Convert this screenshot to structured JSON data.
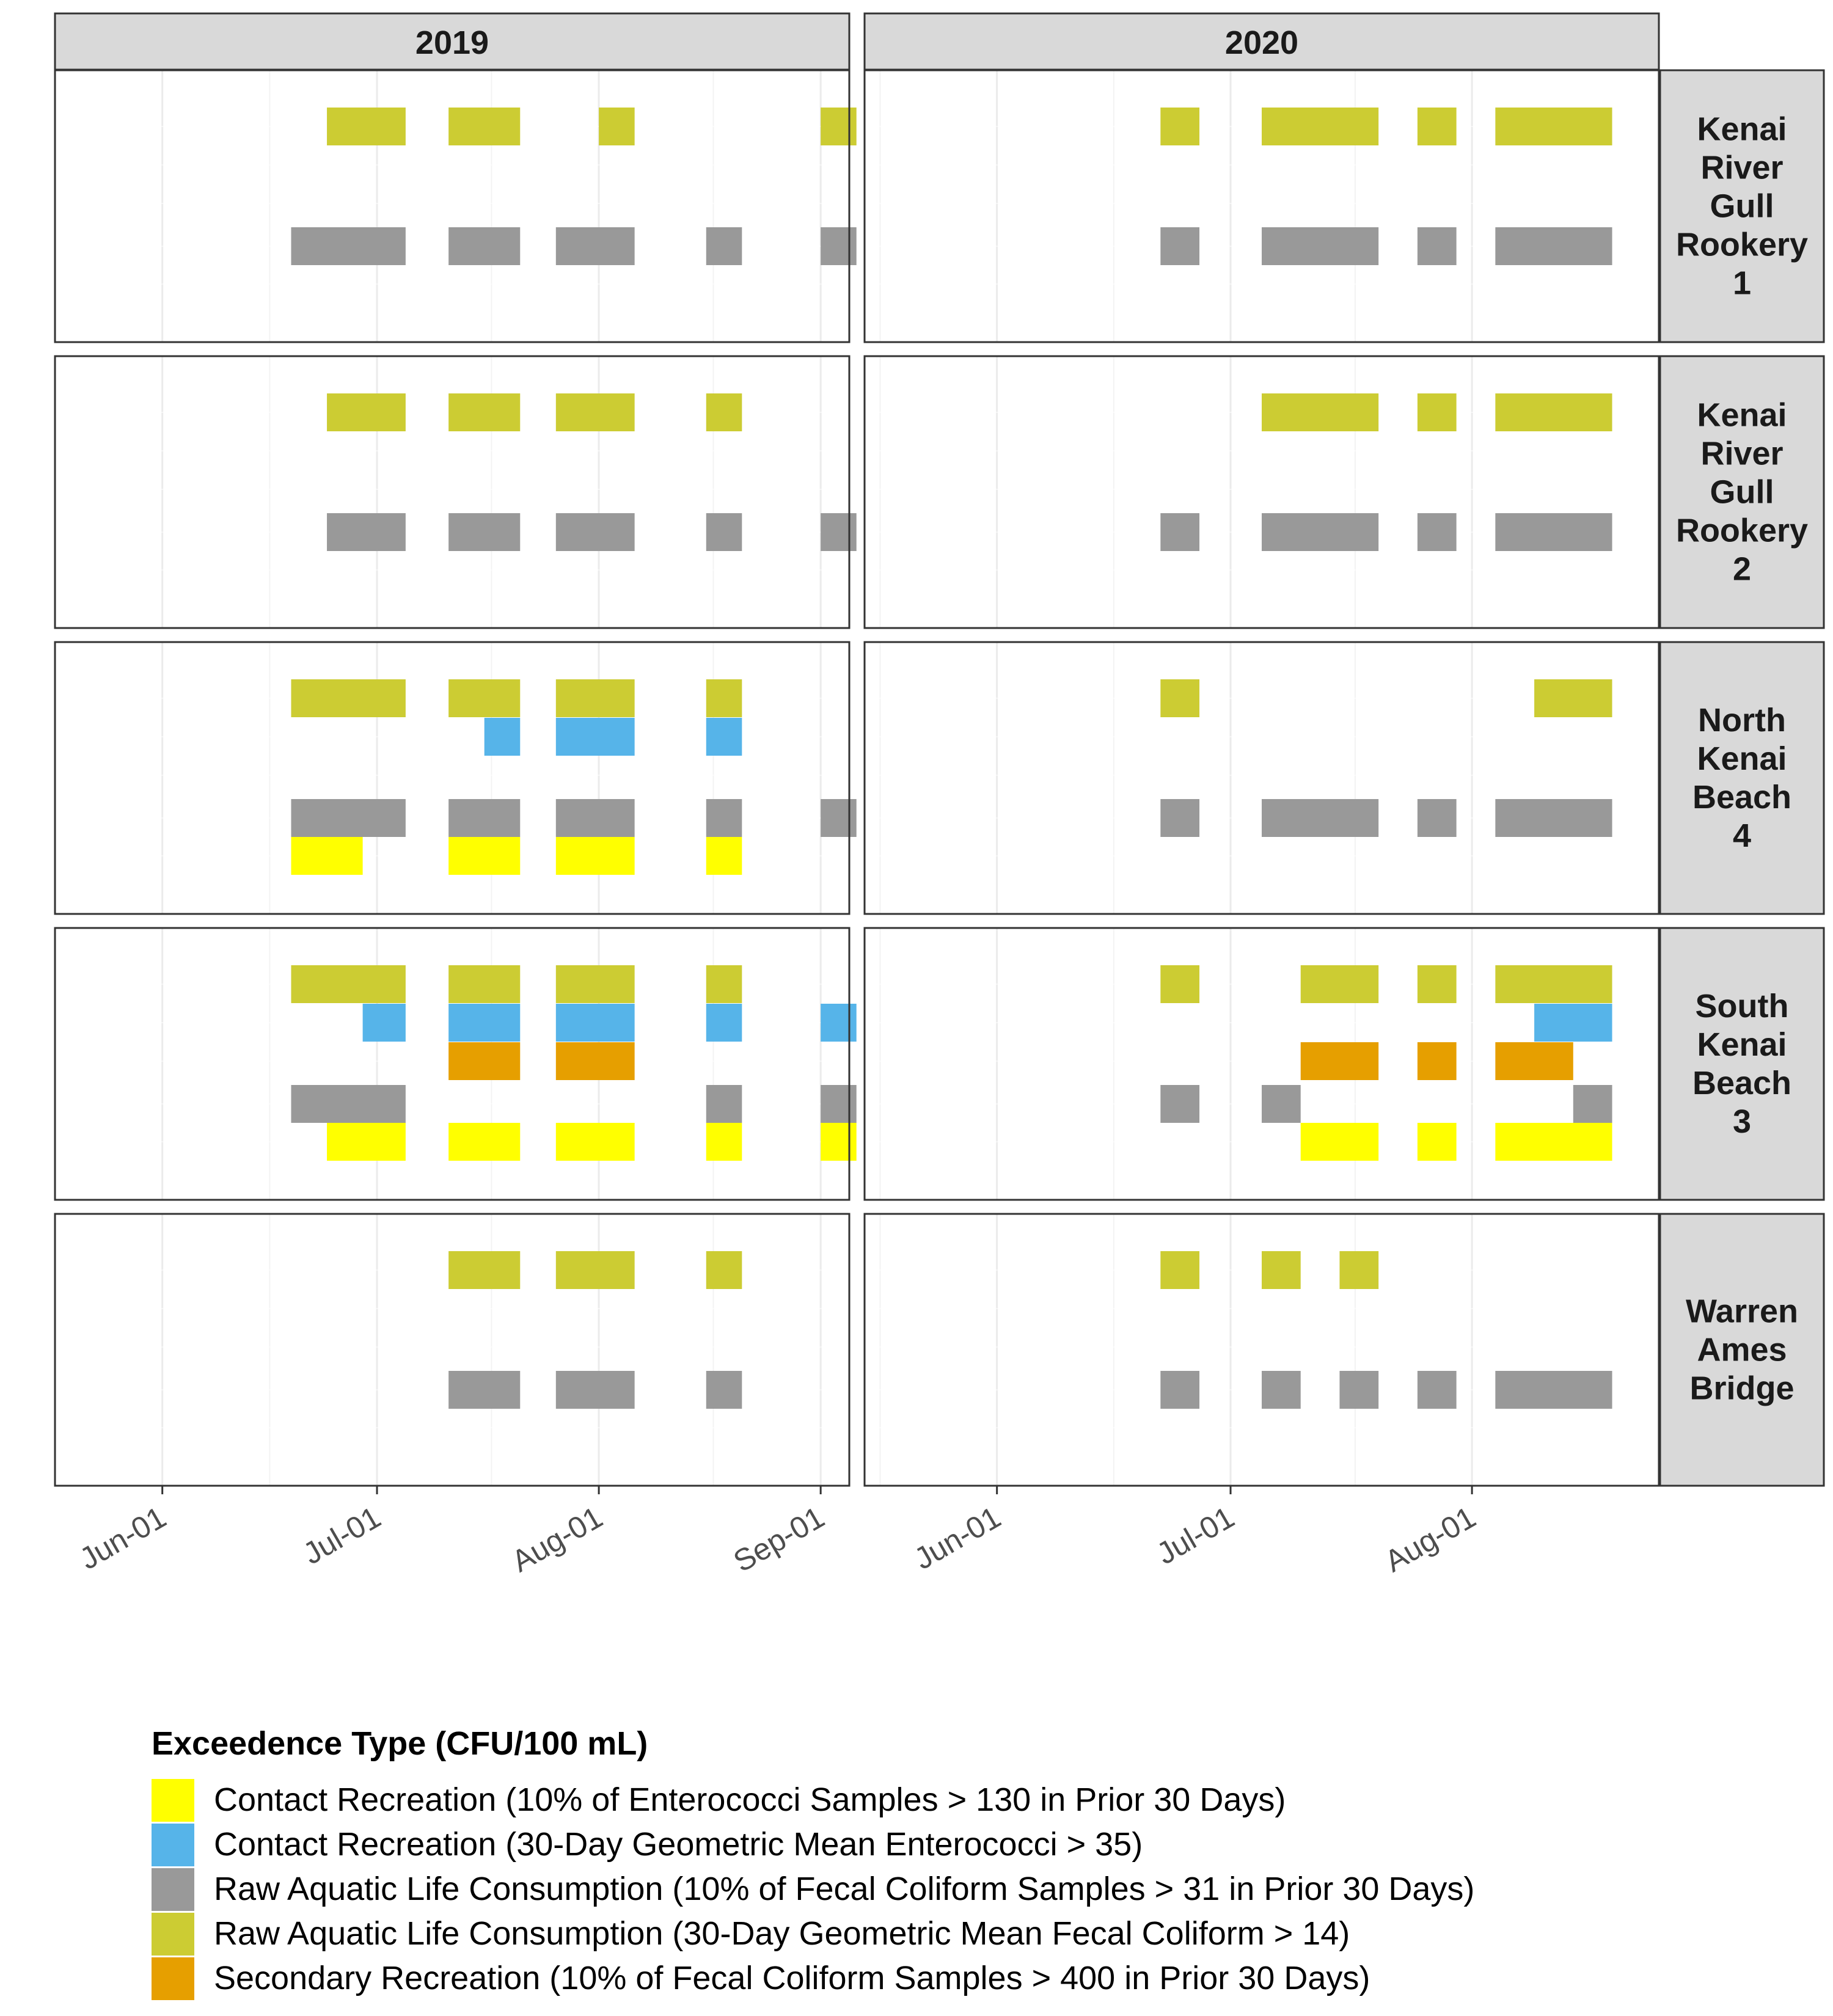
{
  "chart_data": {
    "type": "timeline",
    "years": [
      "2019",
      "2020"
    ],
    "sites": [
      [
        "Kenai",
        "River",
        "Gull",
        "Rookery",
        "1"
      ],
      [
        "Kenai",
        "River",
        "Gull",
        "Rookery",
        "2"
      ],
      [
        "North",
        "Kenai",
        "Beach",
        "4"
      ],
      [
        "South",
        "Kenai",
        "Beach",
        "3"
      ],
      [
        "Warren",
        "Ames",
        "Bridge"
      ]
    ],
    "x_ticks": [
      [
        "Jun-01",
        "Jul-01",
        "Aug-01",
        "Sep-01"
      ],
      [
        "Jun-01",
        "Jul-01",
        "Aug-01"
      ]
    ],
    "x_ranges": [
      [
        "2019-05-17",
        "2019-09-05"
      ],
      [
        "2020-05-15",
        "2020-08-25"
      ]
    ],
    "grid": true,
    "legend_position": "bottom",
    "legend": {
      "title": "Exceedence Type (CFU/100 mL)",
      "items": [
        {
          "label": "Contact Recreation (10% of Enterococci Samples > 130 in Prior 30 Days)",
          "color": "#FFFF00"
        },
        {
          "label": "Contact Recreation (30-Day Geometric Mean Enterococci > 35)",
          "color": "#56B4E9"
        },
        {
          "label": "Raw Aquatic Life Consumption (10% of Fecal Coliform Samples > 31 in Prior 30 Days)",
          "color": "#999999"
        },
        {
          "label": "Raw Aquatic Life Consumption (30-Day Geometric Mean Fecal Coliform > 14)",
          "color": "#CCCC33"
        },
        {
          "label": "Secondary Recreation (10% of Fecal Coliform Samples > 400 in Prior 30 Days)",
          "color": "#E69F00"
        }
      ]
    },
    "panels": [
      {
        "site": 0,
        "year": 0,
        "segments": [
          {
            "row": 3,
            "start": "2019-06-24",
            "end": "2019-07-05"
          },
          {
            "row": 3,
            "start": "2019-07-11",
            "end": "2019-07-21"
          },
          {
            "row": 3,
            "start": "2019-08-01",
            "end": "2019-08-06"
          },
          {
            "row": 3,
            "start": "2019-09-01",
            "end": "2019-09-06"
          },
          {
            "row": 2,
            "start": "2019-06-19",
            "end": "2019-07-05"
          },
          {
            "row": 2,
            "start": "2019-07-11",
            "end": "2019-07-21"
          },
          {
            "row": 2,
            "start": "2019-07-26",
            "end": "2019-08-06"
          },
          {
            "row": 2,
            "start": "2019-08-16",
            "end": "2019-08-21"
          },
          {
            "row": 2,
            "start": "2019-09-01",
            "end": "2019-09-06"
          }
        ]
      },
      {
        "site": 0,
        "year": 1,
        "segments": [
          {
            "row": 3,
            "start": "2020-06-22",
            "end": "2020-06-27"
          },
          {
            "row": 3,
            "start": "2020-07-05",
            "end": "2020-07-20"
          },
          {
            "row": 3,
            "start": "2020-07-25",
            "end": "2020-07-30"
          },
          {
            "row": 3,
            "start": "2020-08-04",
            "end": "2020-08-19"
          },
          {
            "row": 2,
            "start": "2020-06-22",
            "end": "2020-06-27"
          },
          {
            "row": 2,
            "start": "2020-07-05",
            "end": "2020-07-20"
          },
          {
            "row": 2,
            "start": "2020-07-25",
            "end": "2020-07-30"
          },
          {
            "row": 2,
            "start": "2020-08-04",
            "end": "2020-08-19"
          }
        ]
      },
      {
        "site": 1,
        "year": 0,
        "segments": [
          {
            "row": 3,
            "start": "2019-06-24",
            "end": "2019-07-05"
          },
          {
            "row": 3,
            "start": "2019-07-11",
            "end": "2019-07-21"
          },
          {
            "row": 3,
            "start": "2019-07-26",
            "end": "2019-08-06"
          },
          {
            "row": 3,
            "start": "2019-08-16",
            "end": "2019-08-21"
          },
          {
            "row": 2,
            "start": "2019-06-24",
            "end": "2019-07-05"
          },
          {
            "row": 2,
            "start": "2019-07-11",
            "end": "2019-07-21"
          },
          {
            "row": 2,
            "start": "2019-07-26",
            "end": "2019-08-06"
          },
          {
            "row": 2,
            "start": "2019-08-16",
            "end": "2019-08-21"
          },
          {
            "row": 2,
            "start": "2019-09-01",
            "end": "2019-09-06"
          }
        ]
      },
      {
        "site": 1,
        "year": 1,
        "segments": [
          {
            "row": 3,
            "start": "2020-07-05",
            "end": "2020-07-20"
          },
          {
            "row": 3,
            "start": "2020-07-25",
            "end": "2020-07-30"
          },
          {
            "row": 3,
            "start": "2020-08-04",
            "end": "2020-08-19"
          },
          {
            "row": 2,
            "start": "2020-06-22",
            "end": "2020-06-27"
          },
          {
            "row": 2,
            "start": "2020-07-05",
            "end": "2020-07-20"
          },
          {
            "row": 2,
            "start": "2020-07-25",
            "end": "2020-07-30"
          },
          {
            "row": 2,
            "start": "2020-08-04",
            "end": "2020-08-19"
          }
        ]
      },
      {
        "site": 2,
        "year": 0,
        "segments": [
          {
            "row": 3,
            "start": "2019-06-19",
            "end": "2019-07-05"
          },
          {
            "row": 3,
            "start": "2019-07-11",
            "end": "2019-07-21"
          },
          {
            "row": 3,
            "start": "2019-07-26",
            "end": "2019-08-06"
          },
          {
            "row": 3,
            "start": "2019-08-16",
            "end": "2019-08-21"
          },
          {
            "row": 1,
            "start": "2019-07-16",
            "end": "2019-07-21"
          },
          {
            "row": 1,
            "start": "2019-07-26",
            "end": "2019-08-06"
          },
          {
            "row": 1,
            "start": "2019-08-16",
            "end": "2019-08-21"
          },
          {
            "row": 2,
            "start": "2019-06-19",
            "end": "2019-07-05"
          },
          {
            "row": 2,
            "start": "2019-07-11",
            "end": "2019-07-21"
          },
          {
            "row": 2,
            "start": "2019-07-26",
            "end": "2019-08-06"
          },
          {
            "row": 2,
            "start": "2019-08-16",
            "end": "2019-08-21"
          },
          {
            "row": 2,
            "start": "2019-09-01",
            "end": "2019-09-06"
          },
          {
            "row": 0,
            "start": "2019-06-19",
            "end": "2019-06-29"
          },
          {
            "row": 0,
            "start": "2019-07-11",
            "end": "2019-07-21"
          },
          {
            "row": 0,
            "start": "2019-07-26",
            "end": "2019-08-06"
          },
          {
            "row": 0,
            "start": "2019-08-16",
            "end": "2019-08-21"
          }
        ]
      },
      {
        "site": 2,
        "year": 1,
        "segments": [
          {
            "row": 3,
            "start": "2020-06-22",
            "end": "2020-06-27"
          },
          {
            "row": 3,
            "start": "2020-08-09",
            "end": "2020-08-19"
          },
          {
            "row": 2,
            "start": "2020-06-22",
            "end": "2020-06-27"
          },
          {
            "row": 2,
            "start": "2020-07-05",
            "end": "2020-07-20"
          },
          {
            "row": 2,
            "start": "2020-07-25",
            "end": "2020-07-30"
          },
          {
            "row": 2,
            "start": "2020-08-04",
            "end": "2020-08-19"
          }
        ]
      },
      {
        "site": 3,
        "year": 0,
        "segments": [
          {
            "row": 3,
            "start": "2019-06-19",
            "end": "2019-07-05"
          },
          {
            "row": 3,
            "start": "2019-07-11",
            "end": "2019-07-21"
          },
          {
            "row": 3,
            "start": "2019-07-26",
            "end": "2019-08-06"
          },
          {
            "row": 3,
            "start": "2019-08-16",
            "end": "2019-08-21"
          },
          {
            "row": 1,
            "start": "2019-06-29",
            "end": "2019-07-05"
          },
          {
            "row": 1,
            "start": "2019-07-11",
            "end": "2019-07-21"
          },
          {
            "row": 1,
            "start": "2019-07-26",
            "end": "2019-08-06"
          },
          {
            "row": 1,
            "start": "2019-08-16",
            "end": "2019-08-21"
          },
          {
            "row": 1,
            "start": "2019-09-01",
            "end": "2019-09-06"
          },
          {
            "row": 4,
            "start": "2019-07-11",
            "end": "2019-07-21"
          },
          {
            "row": 4,
            "start": "2019-07-26",
            "end": "2019-08-06"
          },
          {
            "row": 2,
            "start": "2019-06-19",
            "end": "2019-07-05"
          },
          {
            "row": 2,
            "start": "2019-08-16",
            "end": "2019-08-21"
          },
          {
            "row": 2,
            "start": "2019-09-01",
            "end": "2019-09-06"
          },
          {
            "row": 0,
            "start": "2019-06-24",
            "end": "2019-07-05"
          },
          {
            "row": 0,
            "start": "2019-07-11",
            "end": "2019-07-21"
          },
          {
            "row": 0,
            "start": "2019-07-26",
            "end": "2019-08-06"
          },
          {
            "row": 0,
            "start": "2019-08-16",
            "end": "2019-08-21"
          },
          {
            "row": 0,
            "start": "2019-09-01",
            "end": "2019-09-06"
          }
        ]
      },
      {
        "site": 3,
        "year": 1,
        "segments": [
          {
            "row": 3,
            "start": "2020-06-22",
            "end": "2020-06-27"
          },
          {
            "row": 3,
            "start": "2020-07-10",
            "end": "2020-07-20"
          },
          {
            "row": 3,
            "start": "2020-07-25",
            "end": "2020-07-30"
          },
          {
            "row": 3,
            "start": "2020-08-04",
            "end": "2020-08-19"
          },
          {
            "row": 1,
            "start": "2020-08-09",
            "end": "2020-08-19"
          },
          {
            "row": 4,
            "start": "2020-07-10",
            "end": "2020-07-20"
          },
          {
            "row": 4,
            "start": "2020-07-25",
            "end": "2020-07-30"
          },
          {
            "row": 4,
            "start": "2020-08-04",
            "end": "2020-08-14"
          },
          {
            "row": 2,
            "start": "2020-06-22",
            "end": "2020-06-27"
          },
          {
            "row": 2,
            "start": "2020-07-05",
            "end": "2020-07-10"
          },
          {
            "row": 2,
            "start": "2020-08-14",
            "end": "2020-08-19"
          },
          {
            "row": 0,
            "start": "2020-07-10",
            "end": "2020-07-20"
          },
          {
            "row": 0,
            "start": "2020-07-25",
            "end": "2020-07-30"
          },
          {
            "row": 0,
            "start": "2020-08-04",
            "end": "2020-08-19"
          }
        ]
      },
      {
        "site": 4,
        "year": 0,
        "segments": [
          {
            "row": 3,
            "start": "2019-07-11",
            "end": "2019-07-21"
          },
          {
            "row": 3,
            "start": "2019-07-26",
            "end": "2019-08-06"
          },
          {
            "row": 3,
            "start": "2019-08-16",
            "end": "2019-08-21"
          },
          {
            "row": 2,
            "start": "2019-07-11",
            "end": "2019-07-21"
          },
          {
            "row": 2,
            "start": "2019-07-26",
            "end": "2019-08-06"
          },
          {
            "row": 2,
            "start": "2019-08-16",
            "end": "2019-08-21"
          }
        ]
      },
      {
        "site": 4,
        "year": 1,
        "segments": [
          {
            "row": 3,
            "start": "2020-06-22",
            "end": "2020-06-27"
          },
          {
            "row": 3,
            "start": "2020-07-05",
            "end": "2020-07-10"
          },
          {
            "row": 3,
            "start": "2020-07-15",
            "end": "2020-07-20"
          },
          {
            "row": 2,
            "start": "2020-06-22",
            "end": "2020-06-27"
          },
          {
            "row": 2,
            "start": "2020-07-05",
            "end": "2020-07-10"
          },
          {
            "row": 2,
            "start": "2020-07-15",
            "end": "2020-07-20"
          },
          {
            "row": 2,
            "start": "2020-07-25",
            "end": "2020-07-30"
          },
          {
            "row": 2,
            "start": "2020-08-04",
            "end": "2020-08-19"
          }
        ]
      }
    ]
  }
}
